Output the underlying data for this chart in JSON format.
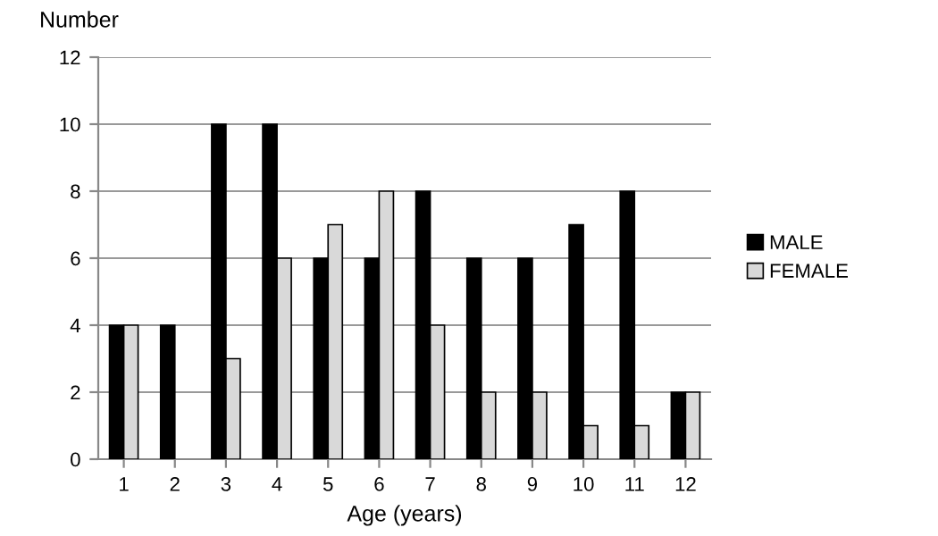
{
  "chart_data": {
    "type": "bar",
    "ylabel": "Number",
    "xlabel": "Age (years)",
    "categories": [
      "1",
      "2",
      "3",
      "4",
      "5",
      "6",
      "7",
      "8",
      "9",
      "10",
      "11",
      "12"
    ],
    "series": [
      {
        "name": "MALE",
        "color": "#000000",
        "values": [
          4,
          4,
          10,
          10,
          6,
          6,
          8,
          6,
          6,
          7,
          8,
          2
        ]
      },
      {
        "name": "FEMALE",
        "color": "#d9d9d9",
        "values": [
          4,
          0,
          3,
          6,
          7,
          8,
          4,
          2,
          2,
          1,
          1,
          2
        ]
      }
    ],
    "ylim": [
      0,
      12
    ],
    "yticks": [
      0,
      2,
      4,
      6,
      8,
      10,
      12
    ],
    "grid": "y",
    "legend": "right"
  }
}
